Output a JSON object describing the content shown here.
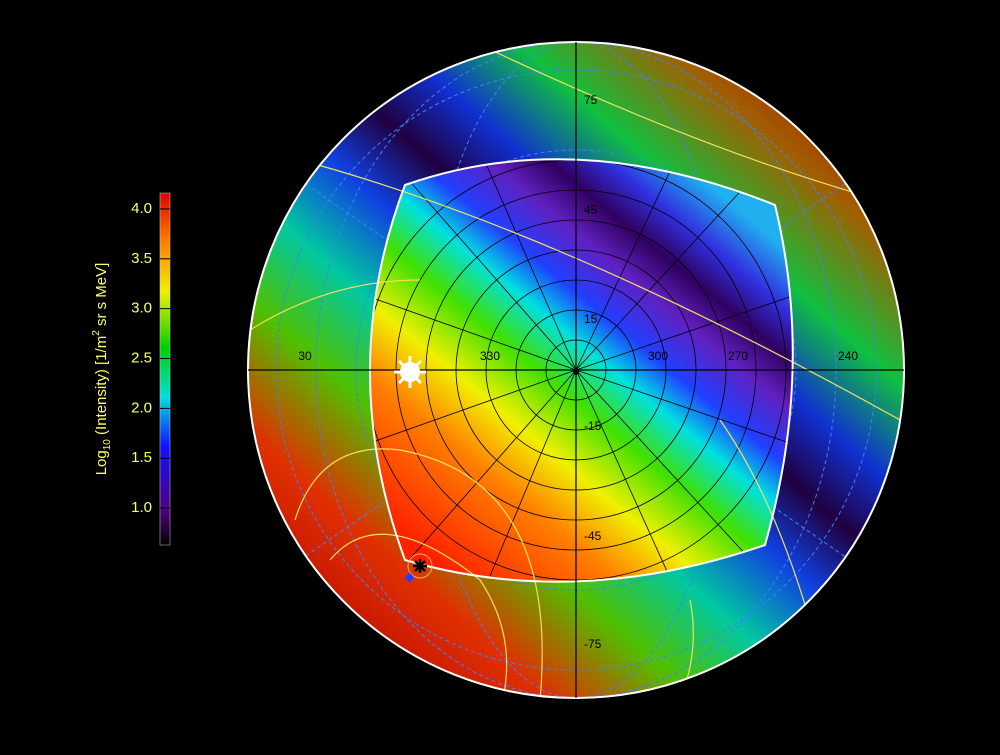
{
  "colorbar": {
    "label": {
      "main": "Log",
      "sub": "10",
      "mid": " (Intensity) [1/m",
      "sup": "2",
      "end": " sr s MeV]"
    },
    "range": [
      0.63,
      4.16
    ],
    "ticks": [
      {
        "value": 1,
        "label": "1.0"
      },
      {
        "value": 1.5,
        "label": "1.5"
      },
      {
        "value": 2,
        "label": "2.0"
      },
      {
        "value": 2.5,
        "label": "2.5"
      },
      {
        "value": 3,
        "label": "3.0"
      },
      {
        "value": 3.5,
        "label": "3.5"
      },
      {
        "value": 4,
        "label": "4.0"
      }
    ]
  },
  "map": {
    "longitude_labels": [
      30,
      330,
      300,
      270,
      240
    ],
    "latitude_labels": [
      75,
      45,
      15,
      -15,
      -45,
      -75
    ]
  }
}
